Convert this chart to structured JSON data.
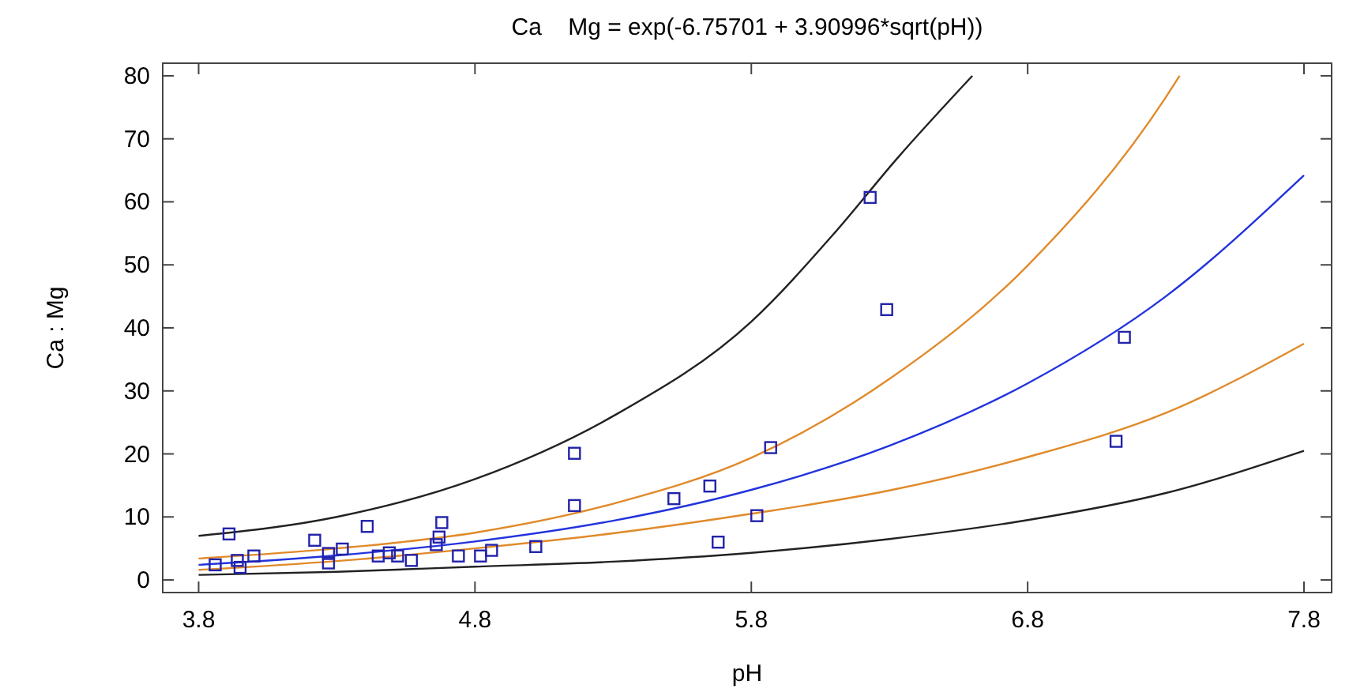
{
  "chart_data": {
    "type": "scatter",
    "title": "Ca    Mg = exp(-6.75701 + 3.90996*sqrt(pH))",
    "xlabel": "pH",
    "ylabel": "Ca : Mg",
    "xlim": [
      3.67,
      7.9
    ],
    "ylim": [
      -2,
      82
    ],
    "xticks": [
      3.8,
      4.8,
      5.8,
      6.8,
      7.8
    ],
    "yticks": [
      0,
      10,
      20,
      30,
      40,
      50,
      60,
      70,
      80
    ],
    "grid": false,
    "series": [
      {
        "type": "line",
        "color": "#222222",
        "line_style": "solid",
        "x": [
          3.8,
          4.3,
          4.8,
          5.3,
          5.8,
          6.1,
          6.33,
          6.6
        ],
        "values": [
          7,
          10,
          16,
          26,
          41,
          55,
          67,
          80
        ]
      },
      {
        "type": "line",
        "color": "#222222",
        "line_style": "solid",
        "x": [
          3.8,
          4.3,
          4.8,
          5.3,
          5.8,
          6.3,
          6.8,
          7.3,
          7.8
        ],
        "values": [
          0.8,
          1.3,
          2.1,
          2.9,
          4.3,
          6.5,
          9.5,
          13.8,
          20.5
        ]
      },
      {
        "type": "line",
        "color": "#e08a2a",
        "line_style": "solid",
        "x": [
          3.8,
          4.3,
          4.8,
          5.3,
          5.8,
          6.3,
          6.8,
          7.3,
          7.35
        ],
        "values": [
          3.4,
          5,
          7.5,
          12.1,
          19.4,
          31.9,
          49.9,
          76.6,
          80
        ]
      },
      {
        "type": "line",
        "color": "#e08a2a",
        "line_style": "solid",
        "x": [
          3.8,
          4.3,
          4.8,
          5.3,
          5.8,
          6.3,
          6.8,
          7.3,
          7.8
        ],
        "values": [
          1.6,
          3,
          5,
          7.4,
          10.5,
          14.2,
          19.5,
          26.5,
          37.5
        ]
      },
      {
        "type": "line",
        "color": "#2233dd",
        "line_style": "solid",
        "x": [
          3.8,
          4.3,
          4.8,
          5.3,
          5.8,
          6.3,
          6.8,
          7.3,
          7.8
        ],
        "values": [
          2.4,
          3.9,
          6.1,
          9.4,
          14.3,
          21.3,
          31.2,
          45,
          64.2
        ]
      },
      {
        "color": "#2222aa",
        "marker": "square",
        "x": [
          3.86,
          3.91,
          3.94,
          3.95,
          4.0,
          4.22,
          4.27,
          4.27,
          4.32,
          4.41,
          4.45,
          4.49,
          4.52,
          4.57,
          4.66,
          4.67,
          4.68,
          4.74,
          4.82,
          4.86,
          5.02,
          5.16,
          5.16,
          5.52,
          5.65,
          5.68,
          5.82,
          5.87,
          6.23,
          6.29,
          7.12,
          7.15
        ],
        "values": [
          2.4,
          7.3,
          3.1,
          2.0,
          3.8,
          6.3,
          2.7,
          4.2,
          4.9,
          8.5,
          3.8,
          4.3,
          3.8,
          3.1,
          5.6,
          6.8,
          9.1,
          3.8,
          3.8,
          4.7,
          5.3,
          11.8,
          20.1,
          12.9,
          14.9,
          6.0,
          10.2,
          21.0,
          60.7,
          42.9,
          22.0,
          38.5
        ]
      }
    ]
  }
}
